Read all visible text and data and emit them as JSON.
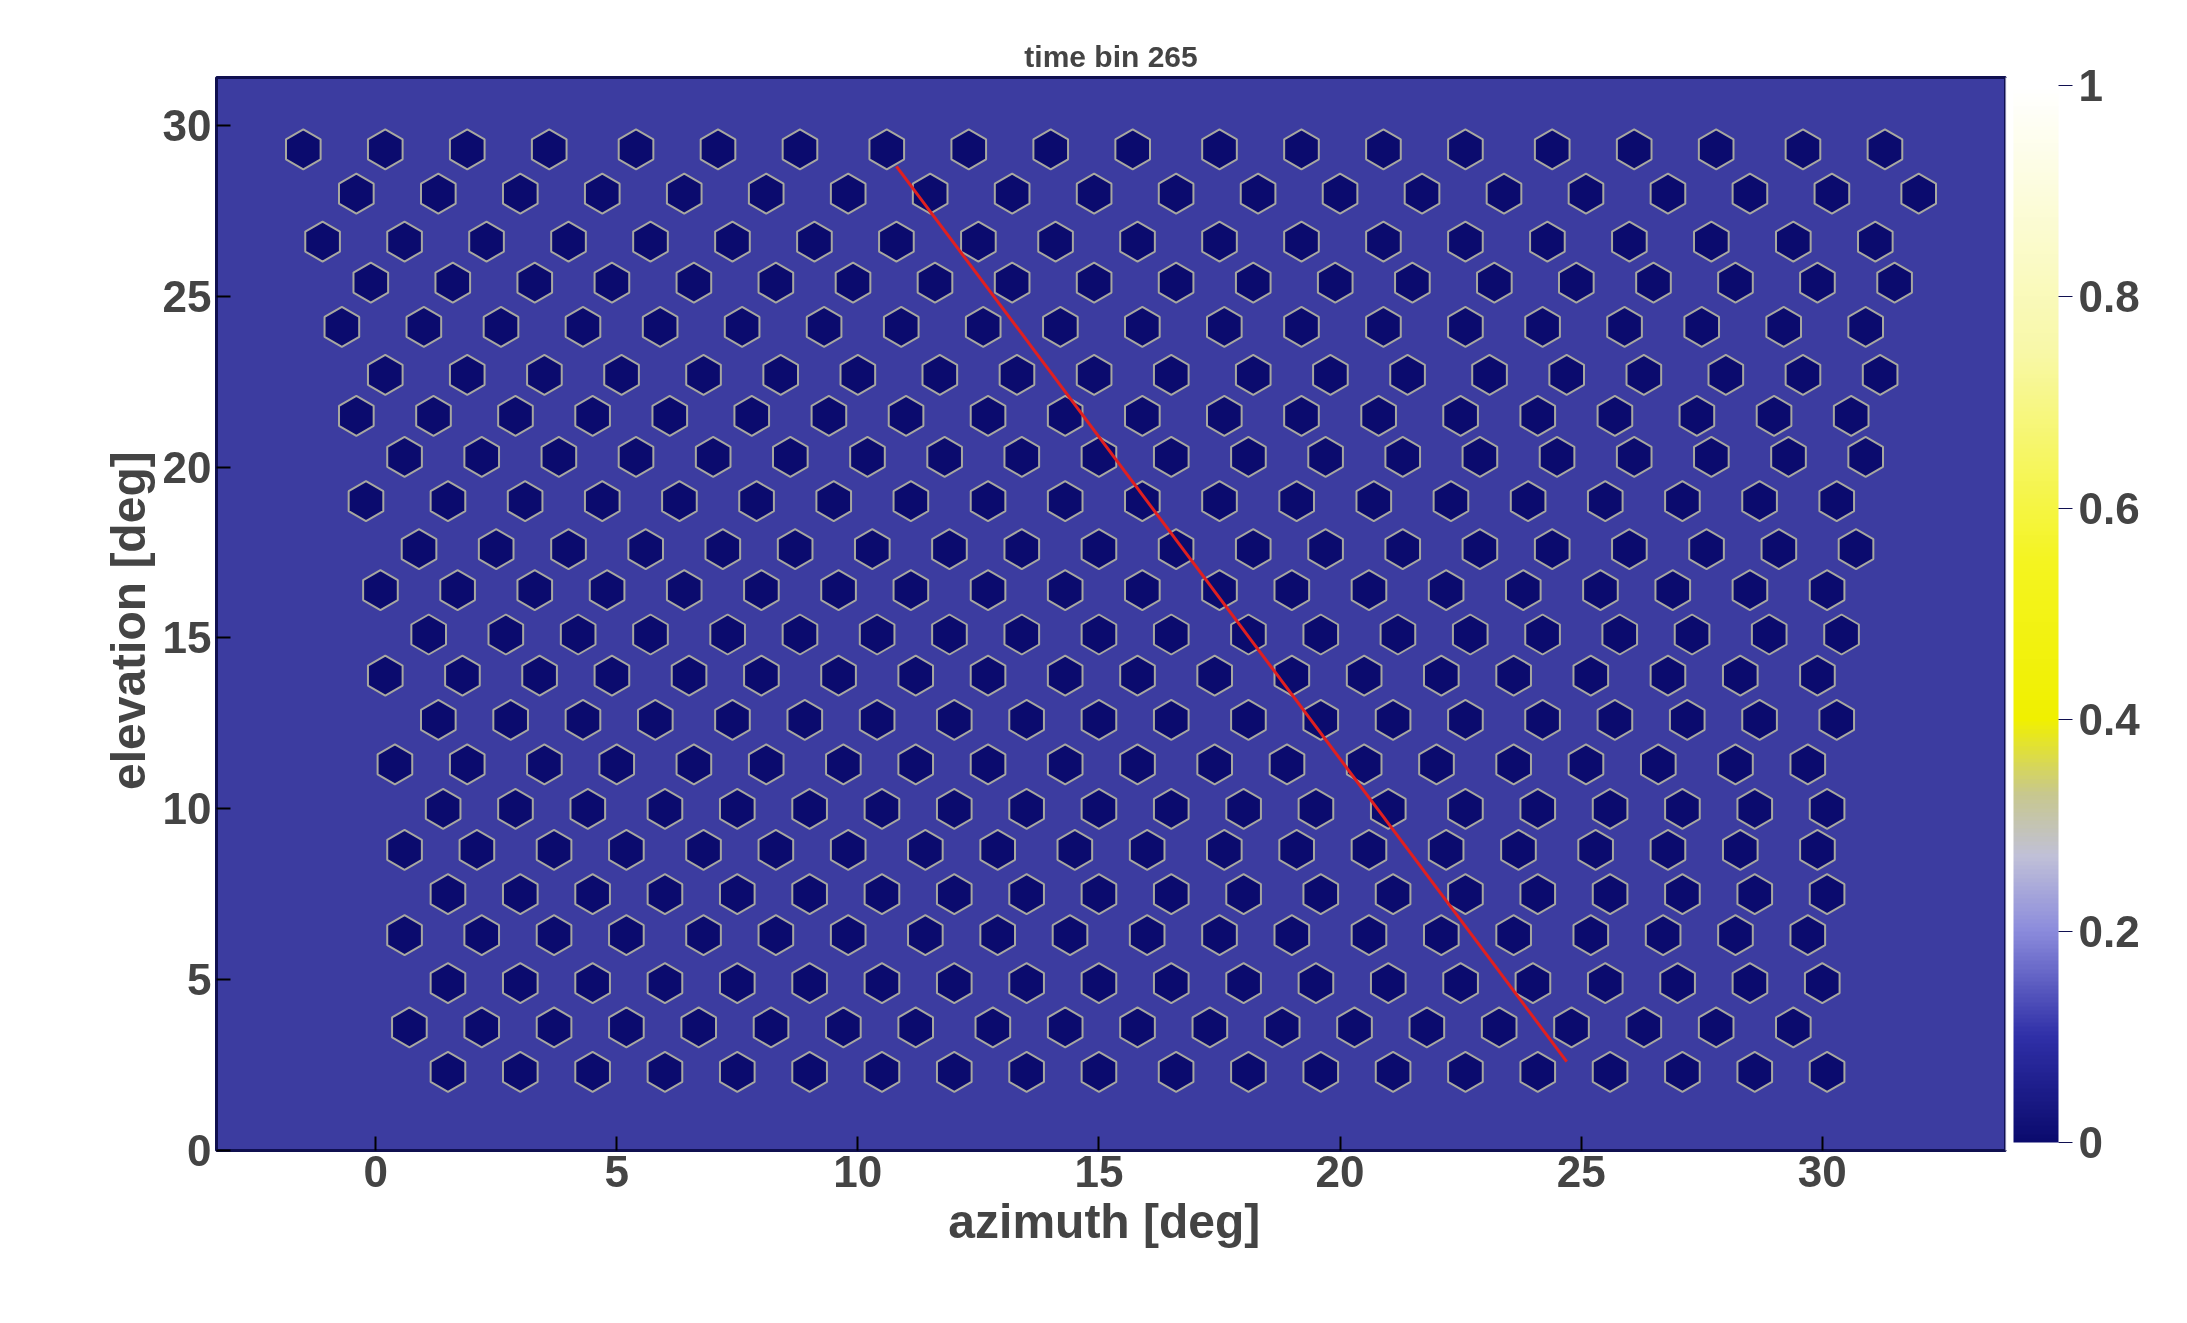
{
  "chart_data": {
    "type": "scatter",
    "title": "time bin 265",
    "xlabel": "azimuth  [deg]",
    "ylabel": "elevation  [deg]",
    "xlim": [
      -3.3,
      33.8
    ],
    "ylim": [
      0,
      31.4
    ],
    "xticks": [
      0,
      5,
      10,
      15,
      20,
      25,
      30
    ],
    "yticks": [
      0,
      5,
      10,
      15,
      20,
      25,
      30
    ],
    "clim": [
      0,
      1
    ],
    "cticks": [
      0,
      0.2,
      0.4,
      0.6,
      0.8,
      1
    ],
    "series": [
      {
        "x": [
          -1.5,
          0.2,
          1.9,
          3.6,
          5.4,
          7.1,
          8.8,
          10.6,
          12.3,
          14.0,
          15.7,
          17.5,
          19.2,
          20.9,
          22.6,
          24.4,
          26.1,
          27.8,
          29.6,
          31.3
        ],
        "values": [
          29.3,
          29.3,
          29.3,
          29.3,
          29.3,
          29.3,
          29.3,
          29.3,
          29.3,
          29.3,
          29.3,
          29.3,
          29.3,
          29.3,
          29.3,
          29.3,
          29.3,
          29.3,
          29.3,
          29.3
        ],
        "cvalues": [
          0,
          0,
          0,
          0,
          0,
          0,
          0,
          0,
          0,
          0,
          0,
          0,
          0,
          0,
          0,
          0,
          0,
          0,
          0,
          0
        ]
      },
      {
        "x": [
          -0.4,
          1.3,
          3.0,
          4.7,
          6.4,
          8.1,
          9.8,
          11.5,
          13.2,
          14.9,
          16.6,
          18.3,
          20.0,
          21.7,
          23.4,
          25.1,
          26.8,
          28.5,
          30.2,
          32.0
        ],
        "values": [
          28.0,
          28.0,
          28.0,
          28.0,
          28.0,
          28.0,
          28.0,
          28.0,
          28.0,
          28.0,
          28.0,
          28.0,
          28.0,
          28.0,
          28.0,
          28.0,
          28.0,
          28.0,
          28.0,
          28.0
        ],
        "cvalues": [
          0,
          0,
          0,
          0,
          0,
          0,
          0,
          0,
          0,
          0,
          0,
          0,
          0,
          0,
          0,
          0,
          0,
          0,
          0,
          0
        ]
      },
      {
        "x": [
          -1.1,
          0.6,
          2.3,
          4.0,
          5.7,
          7.4,
          9.1,
          10.8,
          12.5,
          14.1,
          15.8,
          17.5,
          19.2,
          20.9,
          22.6,
          24.3,
          26.0,
          27.7,
          29.4,
          31.1
        ],
        "values": [
          26.6,
          26.6,
          26.6,
          26.6,
          26.6,
          26.6,
          26.6,
          26.6,
          26.6,
          26.6,
          26.6,
          26.6,
          26.6,
          26.6,
          26.6,
          26.6,
          26.6,
          26.6,
          26.6,
          26.6
        ],
        "cvalues": [
          0,
          0,
          0,
          0,
          0,
          0,
          0,
          0,
          0,
          0,
          0,
          0,
          0,
          0,
          0,
          0,
          0,
          0,
          0,
          0
        ]
      },
      {
        "x": [
          -0.1,
          1.6,
          3.3,
          4.9,
          6.6,
          8.3,
          9.9,
          11.6,
          13.2,
          14.9,
          16.6,
          18.2,
          19.9,
          21.5,
          23.2,
          24.9,
          26.5,
          28.2,
          29.9,
          31.5
        ],
        "values": [
          25.4,
          25.4,
          25.4,
          25.4,
          25.4,
          25.4,
          25.4,
          25.4,
          25.4,
          25.4,
          25.4,
          25.4,
          25.4,
          25.4,
          25.4,
          25.4,
          25.4,
          25.4,
          25.4,
          25.4
        ],
        "cvalues": [
          0,
          0,
          0,
          0,
          0,
          0,
          0,
          0,
          0,
          0,
          0,
          0,
          0,
          0,
          0,
          0,
          0,
          0,
          0,
          0
        ]
      },
      {
        "x": [
          -0.7,
          1.0,
          2.6,
          4.3,
          5.9,
          7.6,
          9.3,
          10.9,
          12.6,
          14.2,
          15.9,
          17.6,
          19.2,
          20.9,
          22.6,
          24.2,
          25.9,
          27.5,
          29.2,
          30.9
        ],
        "values": [
          24.1,
          24.1,
          24.1,
          24.1,
          24.1,
          24.1,
          24.1,
          24.1,
          24.1,
          24.1,
          24.1,
          24.1,
          24.1,
          24.1,
          24.1,
          24.1,
          24.1,
          24.1,
          24.1,
          24.1
        ],
        "cvalues": [
          0,
          0,
          0,
          0,
          0,
          0,
          0,
          0,
          0,
          0,
          0,
          0,
          0,
          0,
          0,
          0,
          0,
          0,
          0,
          0
        ]
      },
      {
        "x": [
          0.2,
          1.9,
          3.5,
          5.1,
          6.8,
          8.4,
          10.0,
          11.7,
          13.3,
          14.9,
          16.5,
          18.2,
          19.8,
          21.4,
          23.1,
          24.7,
          26.3,
          28.0,
          29.6,
          31.2
        ],
        "values": [
          22.7,
          22.7,
          22.7,
          22.7,
          22.7,
          22.7,
          22.7,
          22.7,
          22.7,
          22.7,
          22.7,
          22.7,
          22.7,
          22.7,
          22.7,
          22.7,
          22.7,
          22.7,
          22.7,
          22.7
        ],
        "cvalues": [
          0,
          0,
          0,
          0,
          0,
          0,
          0,
          0,
          0,
          0,
          0,
          0,
          0,
          0,
          0,
          0,
          0,
          0,
          0,
          0
        ]
      },
      {
        "x": [
          -0.4,
          1.2,
          2.9,
          4.5,
          6.1,
          7.8,
          9.4,
          11.0,
          12.7,
          14.3,
          15.9,
          17.6,
          19.2,
          20.8,
          22.5,
          24.1,
          25.7,
          27.4,
          29.0,
          30.6
        ],
        "values": [
          21.5,
          21.5,
          21.5,
          21.5,
          21.5,
          21.5,
          21.5,
          21.5,
          21.5,
          21.5,
          21.5,
          21.5,
          21.5,
          21.5,
          21.5,
          21.5,
          21.5,
          21.5,
          21.5,
          21.5
        ],
        "cvalues": [
          0,
          0,
          0,
          0,
          0,
          0,
          0,
          0,
          0,
          0,
          0,
          0,
          0,
          0,
          0,
          0,
          0,
          0,
          0,
          0
        ]
      },
      {
        "x": [
          0.6,
          2.2,
          3.8,
          5.4,
          7.0,
          8.6,
          10.2,
          11.8,
          13.4,
          15.0,
          16.5,
          18.1,
          19.7,
          21.3,
          22.9,
          24.5,
          26.1,
          27.7,
          29.3,
          30.9
        ],
        "values": [
          20.3,
          20.3,
          20.3,
          20.3,
          20.3,
          20.3,
          20.3,
          20.3,
          20.3,
          20.3,
          20.3,
          20.3,
          20.3,
          20.3,
          20.3,
          20.3,
          20.3,
          20.3,
          20.3,
          20.3
        ],
        "cvalues": [
          0,
          0,
          0,
          0,
          0,
          0,
          0,
          0,
          0,
          0,
          0,
          0,
          0,
          0,
          0,
          0,
          0,
          0,
          0,
          0
        ]
      },
      {
        "x": [
          -0.2,
          1.5,
          3.1,
          4.7,
          6.3,
          7.9,
          9.5,
          11.1,
          12.7,
          14.3,
          15.9,
          17.5,
          19.1,
          20.7,
          22.3,
          23.9,
          25.5,
          27.1,
          28.7,
          30.3
        ],
        "values": [
          19.0,
          19.0,
          19.0,
          19.0,
          19.0,
          19.0,
          19.0,
          19.0,
          19.0,
          19.0,
          19.0,
          19.0,
          19.0,
          19.0,
          19.0,
          19.0,
          19.0,
          19.0,
          19.0,
          19.0
        ],
        "cvalues": [
          0,
          0,
          0,
          0,
          0,
          0,
          0,
          0,
          0,
          0,
          0,
          0,
          0,
          0,
          0,
          0,
          0,
          0,
          0,
          0
        ]
      },
      {
        "x": [
          0.9,
          2.5,
          4.0,
          5.6,
          7.2,
          8.7,
          10.3,
          11.9,
          13.4,
          15.0,
          16.6,
          18.2,
          19.7,
          21.3,
          22.9,
          24.4,
          26.0,
          27.6,
          29.1,
          30.7
        ],
        "values": [
          17.6,
          17.6,
          17.6,
          17.6,
          17.6,
          17.6,
          17.6,
          17.6,
          17.6,
          17.6,
          17.6,
          17.6,
          17.6,
          17.6,
          17.6,
          17.6,
          17.6,
          17.6,
          17.6,
          17.6
        ],
        "cvalues": [
          0,
          0,
          0,
          0,
          0,
          0,
          0,
          0,
          0,
          0,
          0,
          0,
          0,
          0,
          0,
          0,
          0,
          0,
          0,
          0
        ]
      },
      {
        "x": [
          0.1,
          1.7,
          3.3,
          4.8,
          6.4,
          8.0,
          9.6,
          11.1,
          12.7,
          14.3,
          15.9,
          17.5,
          19.0,
          20.6,
          22.2,
          23.8,
          25.4,
          26.9,
          28.5,
          30.1
        ],
        "values": [
          16.4,
          16.4,
          16.4,
          16.4,
          16.4,
          16.4,
          16.4,
          16.4,
          16.4,
          16.4,
          16.4,
          16.4,
          16.4,
          16.4,
          16.4,
          16.4,
          16.4,
          16.4,
          16.4,
          16.4
        ],
        "cvalues": [
          0,
          0,
          0,
          0,
          0,
          0,
          0,
          0,
          0,
          0,
          0,
          0,
          0,
          0,
          0,
          0,
          0,
          0,
          0,
          0
        ]
      },
      {
        "x": [
          1.1,
          2.7,
          4.2,
          5.7,
          7.3,
          8.8,
          10.4,
          11.9,
          13.4,
          15.0,
          16.5,
          18.1,
          19.6,
          21.2,
          22.7,
          24.2,
          25.8,
          27.3,
          28.9,
          30.4
        ],
        "values": [
          15.1,
          15.1,
          15.1,
          15.1,
          15.1,
          15.1,
          15.1,
          15.1,
          15.1,
          15.1,
          15.1,
          15.1,
          15.1,
          15.1,
          15.1,
          15.1,
          15.1,
          15.1,
          15.1,
          15.1
        ],
        "cvalues": [
          0,
          0,
          0,
          0,
          0,
          0,
          0,
          0,
          0,
          0,
          0,
          0,
          0,
          0,
          0,
          0,
          0,
          0,
          0,
          0
        ]
      },
      {
        "x": [
          0.2,
          1.8,
          3.4,
          4.9,
          6.5,
          8.0,
          9.6,
          11.2,
          12.7,
          14.3,
          15.8,
          17.4,
          19.0,
          20.5,
          22.1,
          23.6,
          25.2,
          26.8,
          28.3,
          29.9
        ],
        "values": [
          13.9,
          13.9,
          13.9,
          13.9,
          13.9,
          13.9,
          13.9,
          13.9,
          13.9,
          13.9,
          13.9,
          13.9,
          13.9,
          13.9,
          13.9,
          13.9,
          13.9,
          13.9,
          13.9,
          13.9
        ],
        "cvalues": [
          0,
          0,
          0,
          0,
          0,
          0,
          0,
          0,
          0,
          0,
          0,
          0,
          0,
          0,
          0,
          0,
          0,
          0,
          0,
          0
        ]
      },
      {
        "x": [
          1.3,
          2.8,
          4.3,
          5.8,
          7.4,
          8.9,
          10.4,
          12.0,
          13.5,
          15.0,
          16.5,
          18.1,
          19.6,
          21.1,
          22.6,
          24.2,
          25.7,
          27.2,
          28.7,
          30.3
        ],
        "values": [
          12.6,
          12.6,
          12.6,
          12.6,
          12.6,
          12.6,
          12.6,
          12.6,
          12.6,
          12.6,
          12.6,
          12.6,
          12.6,
          12.6,
          12.6,
          12.6,
          12.6,
          12.6,
          12.6,
          12.6
        ],
        "cvalues": [
          0,
          0,
          0,
          0,
          0,
          0,
          0,
          0,
          0,
          0,
          0,
          0,
          0,
          0,
          0,
          0,
          0,
          0,
          0,
          0
        ]
      },
      {
        "x": [
          0.4,
          1.9,
          3.5,
          5.0,
          6.6,
          8.1,
          9.7,
          11.2,
          12.7,
          14.3,
          15.8,
          17.4,
          18.9,
          20.5,
          22.0,
          23.6,
          25.1,
          26.6,
          28.2,
          29.7
        ],
        "values": [
          11.3,
          11.3,
          11.3,
          11.3,
          11.3,
          11.3,
          11.3,
          11.3,
          11.3,
          11.3,
          11.3,
          11.3,
          11.3,
          11.3,
          11.3,
          11.3,
          11.3,
          11.3,
          11.3,
          11.3
        ],
        "cvalues": [
          0,
          0,
          0,
          0,
          0,
          0,
          0,
          0,
          0,
          0,
          0,
          0,
          0,
          0,
          0,
          0,
          0,
          0,
          0,
          0
        ]
      },
      {
        "x": [
          1.4,
          2.9,
          4.4,
          6.0,
          7.5,
          9.0,
          10.5,
          12.0,
          13.5,
          15.0,
          16.5,
          18.0,
          19.5,
          21.0,
          22.6,
          24.1,
          25.6,
          27.1,
          28.6,
          30.1
        ],
        "values": [
          10.0,
          10.0,
          10.0,
          10.0,
          10.0,
          10.0,
          10.0,
          10.0,
          10.0,
          10.0,
          10.0,
          10.0,
          10.0,
          10.0,
          10.0,
          10.0,
          10.0,
          10.0,
          10.0,
          10.0
        ],
        "cvalues": [
          0,
          0,
          0,
          0,
          0,
          0,
          0,
          0,
          0,
          0,
          0,
          0,
          0,
          0,
          0,
          0,
          0,
          0,
          0,
          0
        ]
      },
      {
        "x": [
          0.6,
          2.1,
          3.7,
          5.2,
          6.8,
          8.3,
          9.8,
          11.4,
          12.9,
          14.5,
          16.0,
          17.6,
          19.1,
          20.6,
          22.2,
          23.7,
          25.3,
          26.8,
          28.3,
          29.9
        ],
        "values": [
          8.8,
          8.8,
          8.8,
          8.8,
          8.8,
          8.8,
          8.8,
          8.8,
          8.8,
          8.8,
          8.8,
          8.8,
          8.8,
          8.8,
          8.8,
          8.8,
          8.8,
          8.8,
          8.8,
          8.8
        ],
        "cvalues": [
          0,
          0,
          0,
          0,
          0,
          0,
          0,
          0,
          0,
          0,
          0,
          0,
          0,
          0,
          0,
          0,
          0,
          0,
          0,
          0
        ]
      },
      {
        "x": [
          1.5,
          3.0,
          4.5,
          6.0,
          7.5,
          9.0,
          10.5,
          12.0,
          13.5,
          15.0,
          16.5,
          18.0,
          19.6,
          21.1,
          22.6,
          24.1,
          25.6,
          27.1,
          28.6,
          30.1
        ],
        "values": [
          7.5,
          7.5,
          7.5,
          7.5,
          7.5,
          7.5,
          7.5,
          7.5,
          7.5,
          7.5,
          7.5,
          7.5,
          7.5,
          7.5,
          7.5,
          7.5,
          7.5,
          7.5,
          7.5,
          7.5
        ],
        "cvalues": [
          0,
          0,
          0,
          0,
          0,
          0,
          0,
          0,
          0,
          0,
          0,
          0,
          0,
          0,
          0,
          0,
          0,
          0,
          0,
          0
        ]
      },
      {
        "x": [
          0.6,
          2.2,
          3.7,
          5.2,
          6.8,
          8.3,
          9.8,
          11.4,
          12.9,
          14.4,
          16.0,
          17.5,
          19.0,
          20.6,
          22.1,
          23.6,
          25.2,
          26.7,
          28.2,
          29.7
        ],
        "values": [
          6.3,
          6.3,
          6.3,
          6.3,
          6.3,
          6.3,
          6.3,
          6.3,
          6.3,
          6.3,
          6.3,
          6.3,
          6.3,
          6.3,
          6.3,
          6.3,
          6.3,
          6.3,
          6.3,
          6.3
        ],
        "cvalues": [
          0,
          0,
          0,
          0,
          0,
          0,
          0,
          0,
          0,
          0,
          0,
          0,
          0,
          0,
          0,
          0,
          0,
          0,
          0,
          0
        ]
      },
      {
        "x": [
          1.5,
          3.0,
          4.5,
          6.0,
          7.5,
          9.0,
          10.5,
          12.0,
          13.5,
          15.0,
          16.5,
          18.0,
          19.5,
          21.0,
          22.5,
          24.0,
          25.5,
          27.0,
          28.5,
          30.0
        ],
        "values": [
          4.9,
          4.9,
          4.9,
          4.9,
          4.9,
          4.9,
          4.9,
          4.9,
          4.9,
          4.9,
          4.9,
          4.9,
          4.9,
          4.9,
          4.9,
          4.9,
          4.9,
          4.9,
          4.9,
          4.9
        ],
        "cvalues": [
          0,
          0,
          0,
          0,
          0,
          0,
          0,
          0,
          0,
          0,
          0,
          0,
          0,
          0,
          0,
          0,
          0,
          0,
          0,
          0
        ]
      },
      {
        "x": [
          0.7,
          2.2,
          3.7,
          5.2,
          6.7,
          8.2,
          9.7,
          11.2,
          12.8,
          14.3,
          15.8,
          17.3,
          18.8,
          20.3,
          21.8,
          23.3,
          24.8,
          26.3,
          27.8,
          29.4
        ],
        "values": [
          3.6,
          3.6,
          3.6,
          3.6,
          3.6,
          3.6,
          3.6,
          3.6,
          3.6,
          3.6,
          3.6,
          3.6,
          3.6,
          3.6,
          3.6,
          3.6,
          3.6,
          3.6,
          3.6,
          3.6
        ],
        "cvalues": [
          0,
          0,
          0,
          0,
          0,
          0,
          0,
          0,
          0,
          0,
          0,
          0,
          0,
          0,
          0,
          0,
          0,
          0,
          0,
          0
        ]
      },
      {
        "x": [
          1.5,
          3.0,
          4.5,
          6.0,
          7.5,
          9.0,
          10.5,
          12.0,
          13.5,
          15.0,
          16.6,
          18.1,
          19.6,
          21.1,
          22.6,
          24.1,
          25.6,
          27.1,
          28.6,
          30.1
        ],
        "values": [
          2.3,
          2.3,
          2.3,
          2.3,
          2.3,
          2.3,
          2.3,
          2.3,
          2.3,
          2.3,
          2.3,
          2.3,
          2.3,
          2.3,
          2.3,
          2.3,
          2.3,
          2.3,
          2.3,
          2.3
        ],
        "cvalues": [
          0,
          0,
          0,
          0,
          0,
          0,
          0,
          0,
          0,
          0,
          0,
          0,
          0,
          0,
          0,
          0,
          0,
          0,
          0,
          0
        ]
      },
      {
        "type": "line",
        "color": "#e02020",
        "x": [
          10.8,
          24.7
        ],
        "values": [
          28.8,
          2.6
        ]
      }
    ]
  }
}
